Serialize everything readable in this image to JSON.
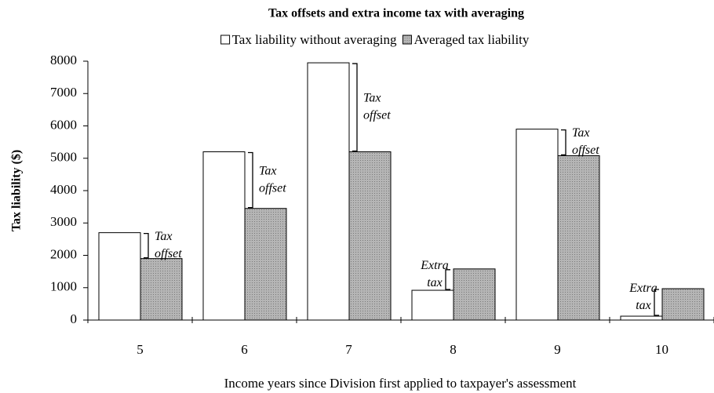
{
  "chart_data": {
    "type": "bar",
    "title": "Tax offsets and extra income tax with averaging",
    "xlabel": "Income years since Division first applied to taxpayer's assessment",
    "ylabel": "Tax liability ($)",
    "categories": [
      "5",
      "6",
      "7",
      "8",
      "9",
      "10"
    ],
    "series": [
      {
        "name": "Tax liability without averaging",
        "color": "#ffffff",
        "values": [
          2700,
          5200,
          7950,
          920,
          5900,
          120
        ]
      },
      {
        "name": "Averaged tax liability",
        "color": "#a8a8a8",
        "values": [
          1900,
          3450,
          5200,
          1580,
          5080,
          970
        ]
      }
    ],
    "annotations": [
      [
        "Tax",
        "offset"
      ],
      [
        "Tax",
        "offset"
      ],
      [
        "Tax",
        "offset"
      ],
      [
        "Extra",
        "tax"
      ],
      [
        "Tax",
        "offset"
      ],
      [
        "Extra",
        "tax"
      ]
    ],
    "ylim": [
      0,
      8000
    ],
    "yticks": [
      0,
      1000,
      2000,
      3000,
      4000,
      5000,
      6000,
      7000,
      8000
    ],
    "grid": false
  }
}
